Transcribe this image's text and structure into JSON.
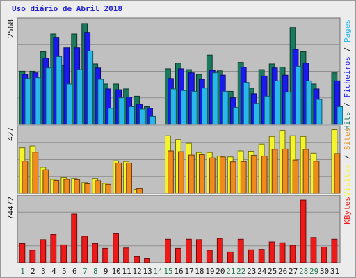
{
  "title": "Uso diário de Abril 2018",
  "colors": {
    "frame_bg": "#ececec",
    "panel_bg": "#c0c0c0",
    "hits": "#1b7a5e",
    "files": "#1a1aee",
    "pages": "#2ab8ec",
    "visits": "#f4f42a",
    "sites": "#f08a1c",
    "kbytes": "#ee1a1a",
    "grid": "#8e8e8e",
    "weekday": "#1a1a1a",
    "weekend": "#237a50",
    "title": "#1f1fd4"
  },
  "chart_data": [
    {
      "type": "bar",
      "ymax_label": "2568",
      "ylim": [
        0,
        2568
      ],
      "categories": [
        "1",
        "2",
        "3",
        "4",
        "5",
        "6",
        "7",
        "8",
        "9",
        "10",
        "11",
        "12",
        "13",
        "14",
        "15",
        "16",
        "17",
        "18",
        "19",
        "20",
        "21",
        "22",
        "23",
        "24",
        "25",
        "26",
        "27",
        "28",
        "29",
        "30",
        "31"
      ],
      "legend": [
        {
          "key": "hits",
          "label": "Hits"
        },
        {
          "key": "files",
          "label": "Ficheiros"
        },
        {
          "key": "pages",
          "label": "Pages"
        }
      ],
      "series": [
        {
          "name": "Hits",
          "color_key": "hits",
          "values": [
            1320,
            1320,
            1800,
            2240,
            1460,
            2240,
            2500,
            1500,
            1000,
            1000,
            880,
            700,
            440,
            0,
            1380,
            1520,
            1360,
            1240,
            1720,
            1330,
            820,
            1540,
            900,
            1360,
            1500,
            1420,
            2400,
            1800,
            1000,
            0,
            1280
          ]
        },
        {
          "name": "Ficheiros",
          "color_key": "files",
          "values": [
            1240,
            1280,
            1640,
            2160,
            1900,
            1900,
            2280,
            1400,
            880,
            860,
            680,
            500,
            400,
            0,
            1140,
            1380,
            1280,
            1120,
            1340,
            1220,
            660,
            1420,
            760,
            1200,
            1400,
            1220,
            1860,
            1520,
            880,
            0,
            1080
          ]
        },
        {
          "name": "Pages",
          "color_key": "pages",
          "values": [
            1140,
            1160,
            1400,
            1680,
            1000,
            1360,
            1820,
            1120,
            400,
            660,
            440,
            380,
            200,
            0,
            880,
            840,
            820,
            900,
            1280,
            820,
            420,
            1040,
            520,
            700,
            1080,
            800,
            1440,
            1080,
            620,
            0,
            440
          ]
        }
      ]
    },
    {
      "type": "bar",
      "ymax_label": "427",
      "ylim": [
        0,
        427
      ],
      "categories": [
        "1",
        "2",
        "3",
        "4",
        "5",
        "6",
        "7",
        "8",
        "9",
        "10",
        "11",
        "12",
        "13",
        "14",
        "15",
        "16",
        "17",
        "18",
        "19",
        "20",
        "21",
        "22",
        "23",
        "24",
        "25",
        "26",
        "27",
        "28",
        "29",
        "30",
        "31"
      ],
      "legend": [
        {
          "key": "visits",
          "label": "Visitas"
        },
        {
          "key": "sites",
          "label": "Sites"
        }
      ],
      "series": [
        {
          "name": "Visitas",
          "color_key": "visits",
          "values": [
            300,
            312,
            170,
            92,
            103,
            98,
            70,
            98,
            65,
            215,
            210,
            25,
            0,
            0,
            380,
            355,
            330,
            270,
            270,
            245,
            240,
            280,
            278,
            325,
            375,
            415,
            380,
            375,
            265,
            0,
            420
          ]
        },
        {
          "name": "Sites",
          "color_key": "sites",
          "values": [
            213,
            272,
            155,
            85,
            92,
            90,
            62,
            83,
            58,
            200,
            200,
            30,
            0,
            0,
            280,
            275,
            252,
            255,
            233,
            240,
            208,
            210,
            250,
            245,
            290,
            292,
            220,
            290,
            212,
            0,
            262
          ]
        }
      ]
    },
    {
      "type": "bar",
      "ymax_label": "74472",
      "ylim": [
        0,
        74472
      ],
      "categories": [
        "1",
        "2",
        "3",
        "4",
        "5",
        "6",
        "7",
        "8",
        "9",
        "10",
        "11",
        "12",
        "13",
        "14",
        "15",
        "16",
        "17",
        "18",
        "19",
        "20",
        "21",
        "22",
        "23",
        "24",
        "25",
        "26",
        "27",
        "28",
        "29",
        "30",
        "31"
      ],
      "legend": [
        {
          "key": "kbytes",
          "label": "KBytes"
        }
      ],
      "series": [
        {
          "name": "KBytes",
          "color_key": "kbytes",
          "values": [
            22000,
            14500,
            26500,
            32500,
            20500,
            56000,
            30500,
            22000,
            16500,
            34000,
            17000,
            7000,
            5200,
            0,
            27000,
            16500,
            27000,
            26500,
            14500,
            28000,
            12500,
            27000,
            15000,
            15500,
            24000,
            23000,
            20000,
            72000,
            29000,
            18000,
            27000
          ]
        }
      ]
    }
  ],
  "days": [
    "1",
    "2",
    "3",
    "4",
    "5",
    "6",
    "7",
    "8",
    "9",
    "10",
    "11",
    "12",
    "13",
    "14",
    "15",
    "16",
    "17",
    "18",
    "19",
    "20",
    "21",
    "22",
    "23",
    "24",
    "25",
    "26",
    "27",
    "28",
    "29",
    "30",
    "31"
  ],
  "weekend_days": [
    "1",
    "7",
    "8",
    "14",
    "15",
    "21",
    "22",
    "28",
    "29"
  ]
}
